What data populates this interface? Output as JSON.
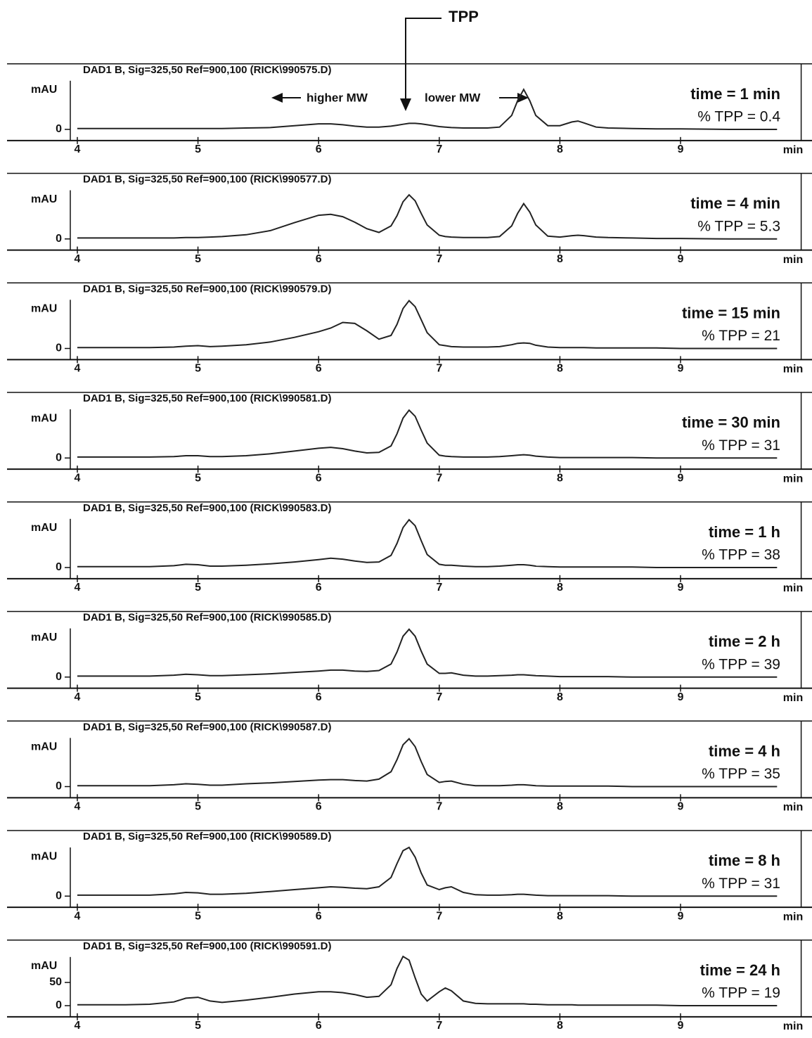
{
  "figure_label": "TPP",
  "chart_data": [
    {
      "type": "line",
      "title": "DAD1 B, Sig=325,50 Ref=900,100 (RICK\\990575.D)",
      "time_label": "time = 1 min",
      "tpp_label": "% TPP = 0.4",
      "annotations": [
        "higher MW",
        "lower MW"
      ],
      "ylabel": "mAU",
      "xlabel": "min",
      "xlim": [
        4,
        10
      ],
      "xticks": [
        4,
        5,
        6,
        7,
        8,
        9
      ],
      "ylim": [
        -24,
        120
      ],
      "yticks": [
        0
      ],
      "color": "#222222",
      "x": [
        4.0,
        4.2,
        4.4,
        4.6,
        4.8,
        4.9,
        5.0,
        5.1,
        5.2,
        5.4,
        5.6,
        5.8,
        6.0,
        6.1,
        6.2,
        6.3,
        6.4,
        6.5,
        6.6,
        6.65,
        6.7,
        6.75,
        6.8,
        6.85,
        6.9,
        7.0,
        7.05,
        7.1,
        7.2,
        7.3,
        7.4,
        7.5,
        7.6,
        7.65,
        7.7,
        7.75,
        7.8,
        7.9,
        8.0,
        8.1,
        8.15,
        8.2,
        8.3,
        8.4,
        8.6,
        8.8,
        9.0,
        9.4,
        9.8
      ],
      "values": [
        2,
        2,
        2,
        2,
        2,
        2,
        2,
        2,
        2,
        3,
        4,
        8,
        12,
        12,
        10,
        7,
        5,
        5,
        7,
        9,
        11,
        13,
        13,
        12,
        10,
        6,
        5,
        4,
        3,
        3,
        3,
        5,
        30,
        62,
        86,
        62,
        30,
        8,
        8,
        16,
        18,
        14,
        5,
        3,
        2,
        1,
        1,
        0,
        0
      ]
    },
    {
      "type": "line",
      "title": "DAD1 B, Sig=325,50 Ref=900,100 (RICK\\990577.D)",
      "time_label": "time = 4 min",
      "tpp_label": "% TPP = 5.3",
      "ylabel": "mAU",
      "xlabel": "min",
      "xlim": [
        4,
        10
      ],
      "xticks": [
        4,
        5,
        6,
        7,
        8,
        9
      ],
      "ylim": [
        -24,
        120
      ],
      "yticks": [
        0
      ],
      "color": "#222222",
      "x": [
        4.0,
        4.2,
        4.4,
        4.6,
        4.8,
        4.9,
        5.0,
        5.1,
        5.2,
        5.4,
        5.6,
        5.8,
        6.0,
        6.1,
        6.2,
        6.3,
        6.4,
        6.5,
        6.6,
        6.65,
        6.7,
        6.75,
        6.8,
        6.85,
        6.9,
        7.0,
        7.05,
        7.1,
        7.2,
        7.3,
        7.4,
        7.5,
        7.6,
        7.65,
        7.7,
        7.75,
        7.8,
        7.9,
        8.0,
        8.1,
        8.15,
        8.2,
        8.3,
        8.4,
        8.6,
        8.8,
        9.0,
        9.4,
        9.8
      ],
      "values": [
        2,
        2,
        2,
        2,
        2,
        3,
        3,
        4,
        5,
        9,
        18,
        35,
        51,
        53,
        48,
        36,
        22,
        14,
        28,
        50,
        80,
        95,
        82,
        55,
        30,
        8,
        5,
        4,
        3,
        3,
        3,
        5,
        28,
        55,
        76,
        58,
        30,
        6,
        4,
        7,
        8,
        7,
        4,
        3,
        2,
        1,
        1,
        0,
        0
      ]
    },
    {
      "type": "line",
      "title": "DAD1 B, Sig=325,50 Ref=900,100 (RICK\\990579.D)",
      "time_label": "time = 15 min",
      "tpp_label": "% TPP = 21",
      "ylabel": "mAU",
      "xlabel": "min",
      "xlim": [
        4,
        10
      ],
      "xticks": [
        4,
        5,
        6,
        7,
        8,
        9
      ],
      "ylim": [
        -24,
        120
      ],
      "yticks": [
        0
      ],
      "color": "#222222",
      "x": [
        4.0,
        4.2,
        4.4,
        4.6,
        4.8,
        4.9,
        5.0,
        5.1,
        5.2,
        5.4,
        5.6,
        5.8,
        6.0,
        6.1,
        6.2,
        6.3,
        6.4,
        6.5,
        6.6,
        6.65,
        6.7,
        6.75,
        6.8,
        6.85,
        6.9,
        7.0,
        7.05,
        7.1,
        7.2,
        7.3,
        7.4,
        7.5,
        7.6,
        7.65,
        7.7,
        7.75,
        7.8,
        7.9,
        8.0,
        8.1,
        8.15,
        8.2,
        8.3,
        8.4,
        8.6,
        8.8,
        9.0,
        9.4,
        9.8
      ],
      "values": [
        2,
        2,
        2,
        2,
        3,
        5,
        6,
        4,
        5,
        8,
        14,
        24,
        36,
        44,
        56,
        54,
        38,
        20,
        28,
        52,
        86,
        103,
        90,
        62,
        34,
        8,
        6,
        4,
        3,
        3,
        3,
        4,
        8,
        11,
        12,
        11,
        7,
        3,
        2,
        2,
        2,
        2,
        1,
        1,
        1,
        1,
        0,
        0,
        0
      ]
    },
    {
      "type": "line",
      "title": "DAD1 B, Sig=325,50 Ref=900,100 (RICK\\990581.D)",
      "time_label": "time = 30 min",
      "tpp_label": "% TPP = 31",
      "ylabel": "mAU",
      "xlabel": "min",
      "xlim": [
        4,
        10
      ],
      "xticks": [
        4,
        5,
        6,
        7,
        8,
        9
      ],
      "ylim": [
        -24,
        120
      ],
      "yticks": [
        0
      ],
      "color": "#222222",
      "x": [
        4.0,
        4.2,
        4.4,
        4.6,
        4.8,
        4.9,
        5.0,
        5.1,
        5.2,
        5.4,
        5.6,
        5.8,
        6.0,
        6.1,
        6.2,
        6.3,
        6.4,
        6.5,
        6.6,
        6.65,
        6.7,
        6.75,
        6.8,
        6.85,
        6.9,
        7.0,
        7.05,
        7.1,
        7.2,
        7.3,
        7.4,
        7.5,
        7.6,
        7.65,
        7.7,
        7.75,
        7.8,
        7.9,
        8.0,
        8.1,
        8.15,
        8.2,
        8.3,
        8.4,
        8.6,
        8.8,
        9.0,
        9.4,
        9.8
      ],
      "values": [
        2,
        2,
        2,
        2,
        3,
        5,
        5,
        3,
        3,
        5,
        9,
        15,
        21,
        23,
        20,
        15,
        11,
        12,
        26,
        52,
        86,
        103,
        90,
        60,
        32,
        6,
        4,
        3,
        2,
        2,
        2,
        3,
        5,
        6,
        7,
        6,
        4,
        2,
        1,
        1,
        1,
        1,
        1,
        1,
        1,
        0,
        0,
        0,
        0
      ]
    },
    {
      "type": "line",
      "title": "DAD1 B, Sig=325,50 Ref=900,100 (RICK\\990583.D)",
      "time_label": "time = 1 h",
      "tpp_label": "% TPP = 38",
      "ylabel": "mAU",
      "xlabel": "min",
      "xlim": [
        4,
        10
      ],
      "xticks": [
        4,
        5,
        6,
        7,
        8,
        9
      ],
      "ylim": [
        -24,
        120
      ],
      "yticks": [
        0
      ],
      "color": "#222222",
      "x": [
        4.0,
        4.2,
        4.4,
        4.6,
        4.8,
        4.9,
        5.0,
        5.1,
        5.2,
        5.4,
        5.6,
        5.8,
        6.0,
        6.1,
        6.2,
        6.3,
        6.4,
        6.5,
        6.6,
        6.65,
        6.7,
        6.75,
        6.8,
        6.85,
        6.9,
        7.0,
        7.05,
        7.1,
        7.2,
        7.3,
        7.4,
        7.5,
        7.6,
        7.65,
        7.7,
        7.75,
        7.8,
        7.9,
        8.0,
        8.1,
        8.15,
        8.2,
        8.3,
        8.4,
        8.6,
        8.8,
        9.0,
        9.4,
        9.8
      ],
      "values": [
        2,
        2,
        2,
        2,
        4,
        7,
        6,
        3,
        3,
        5,
        8,
        12,
        17,
        20,
        18,
        14,
        11,
        12,
        26,
        52,
        86,
        103,
        90,
        58,
        28,
        7,
        5,
        5,
        3,
        2,
        2,
        3,
        5,
        6,
        6,
        5,
        3,
        2,
        1,
        1,
        1,
        1,
        1,
        1,
        1,
        0,
        0,
        0,
        0
      ]
    },
    {
      "type": "line",
      "title": "DAD1 B, Sig=325,50 Ref=900,100 (RICK\\990585.D)",
      "time_label": "time = 2 h",
      "tpp_label": "% TPP = 39",
      "ylabel": "mAU",
      "xlabel": "min",
      "xlim": [
        4,
        10
      ],
      "xticks": [
        4,
        5,
        6,
        7,
        8,
        9
      ],
      "ylim": [
        -24,
        120
      ],
      "yticks": [
        0
      ],
      "color": "#222222",
      "x": [
        4.0,
        4.2,
        4.4,
        4.6,
        4.8,
        4.9,
        5.0,
        5.1,
        5.2,
        5.4,
        5.6,
        5.8,
        6.0,
        6.1,
        6.2,
        6.3,
        6.4,
        6.5,
        6.6,
        6.65,
        6.7,
        6.75,
        6.8,
        6.85,
        6.9,
        7.0,
        7.05,
        7.1,
        7.2,
        7.3,
        7.4,
        7.5,
        7.6,
        7.65,
        7.7,
        7.75,
        7.8,
        7.9,
        8.0,
        8.1,
        8.15,
        8.2,
        8.3,
        8.4,
        8.6,
        8.8,
        9.0,
        9.4,
        9.8
      ],
      "values": [
        2,
        2,
        2,
        2,
        4,
        6,
        5,
        3,
        3,
        5,
        7,
        10,
        13,
        15,
        15,
        13,
        12,
        14,
        28,
        54,
        88,
        103,
        88,
        56,
        28,
        8,
        8,
        9,
        4,
        2,
        2,
        3,
        4,
        5,
        5,
        4,
        3,
        2,
        1,
        1,
        1,
        1,
        1,
        1,
        0,
        0,
        0,
        0,
        0
      ]
    },
    {
      "type": "line",
      "title": "DAD1 B, Sig=325,50 Ref=900,100 (RICK\\990587.D)",
      "time_label": "time = 4 h",
      "tpp_label": "% TPP = 35",
      "ylabel": "mAU",
      "xlabel": "min",
      "xlim": [
        4,
        10
      ],
      "xticks": [
        4,
        5,
        6,
        7,
        8,
        9
      ],
      "ylim": [
        -24,
        120
      ],
      "yticks": [
        0
      ],
      "color": "#222222",
      "x": [
        4.0,
        4.2,
        4.4,
        4.6,
        4.8,
        4.9,
        5.0,
        5.1,
        5.2,
        5.4,
        5.6,
        5.8,
        6.0,
        6.1,
        6.2,
        6.3,
        6.4,
        6.5,
        6.6,
        6.65,
        6.7,
        6.75,
        6.8,
        6.85,
        6.9,
        7.0,
        7.05,
        7.1,
        7.2,
        7.3,
        7.4,
        7.5,
        7.6,
        7.65,
        7.7,
        7.75,
        7.8,
        7.9,
        8.0,
        8.1,
        8.15,
        8.2,
        8.3,
        8.4,
        8.6,
        8.8,
        9.0,
        9.4,
        9.8
      ],
      "values": [
        2,
        2,
        2,
        2,
        4,
        6,
        5,
        3,
        3,
        6,
        8,
        11,
        14,
        15,
        15,
        13,
        12,
        16,
        32,
        58,
        90,
        103,
        86,
        54,
        26,
        9,
        11,
        12,
        5,
        2,
        2,
        2,
        3,
        4,
        4,
        3,
        2,
        1,
        1,
        1,
        1,
        1,
        1,
        1,
        0,
        0,
        0,
        0,
        0
      ]
    },
    {
      "type": "line",
      "title": "DAD1 B, Sig=325,50 Ref=900,100 (RICK\\990589.D)",
      "time_label": "time = 8 h",
      "tpp_label": "% TPP = 31",
      "ylabel": "mAU",
      "xlabel": "min",
      "xlim": [
        4,
        10
      ],
      "xticks": [
        4,
        5,
        6,
        7,
        8,
        9
      ],
      "ylim": [
        -24,
        120
      ],
      "yticks": [
        0
      ],
      "color": "#222222",
      "x": [
        4.0,
        4.2,
        4.4,
        4.6,
        4.8,
        4.9,
        5.0,
        5.1,
        5.2,
        5.4,
        5.6,
        5.8,
        6.0,
        6.1,
        6.2,
        6.3,
        6.4,
        6.5,
        6.6,
        6.65,
        6.7,
        6.75,
        6.8,
        6.85,
        6.9,
        7.0,
        7.05,
        7.1,
        7.2,
        7.3,
        7.4,
        7.5,
        7.6,
        7.65,
        7.7,
        7.75,
        7.8,
        7.9,
        8.0,
        8.1,
        8.15,
        8.2,
        8.3,
        8.4,
        8.6,
        8.8,
        9.0,
        9.4,
        9.8
      ],
      "values": [
        2,
        2,
        2,
        2,
        5,
        8,
        7,
        4,
        4,
        6,
        10,
        14,
        18,
        20,
        19,
        17,
        16,
        20,
        40,
        70,
        98,
        105,
        84,
        50,
        24,
        14,
        18,
        20,
        8,
        3,
        2,
        2,
        3,
        4,
        4,
        3,
        2,
        1,
        1,
        1,
        1,
        1,
        1,
        1,
        0,
        0,
        0,
        0,
        0
      ]
    },
    {
      "type": "line",
      "title": "DAD1 B, Sig=325,50 Ref=900,100 (RICK\\990591.D)",
      "time_label": "time = 24 h",
      "tpp_label": "% TPP = 19",
      "ylabel": "mAU",
      "xlabel": "min",
      "xlim": [
        4,
        10
      ],
      "xticks": [
        4,
        5,
        6,
        7,
        8,
        9
      ],
      "ylim": [
        -24,
        120
      ],
      "yticks": [
        0,
        50
      ],
      "color": "#222222",
      "x": [
        4.0,
        4.2,
        4.4,
        4.6,
        4.8,
        4.9,
        5.0,
        5.1,
        5.2,
        5.4,
        5.6,
        5.8,
        6.0,
        6.1,
        6.2,
        6.3,
        6.4,
        6.5,
        6.6,
        6.65,
        6.7,
        6.75,
        6.8,
        6.85,
        6.9,
        7.0,
        7.05,
        7.1,
        7.2,
        7.3,
        7.4,
        7.5,
        7.6,
        7.65,
        7.7,
        7.75,
        7.8,
        7.9,
        8.0,
        8.1,
        8.15,
        8.2,
        8.3,
        8.4,
        8.6,
        8.8,
        9.0,
        9.4,
        9.8
      ],
      "values": [
        2,
        2,
        2,
        3,
        8,
        16,
        18,
        10,
        7,
        12,
        18,
        25,
        30,
        30,
        28,
        24,
        18,
        20,
        45,
        80,
        106,
        98,
        60,
        25,
        10,
        30,
        38,
        32,
        10,
        5,
        4,
        4,
        4,
        4,
        4,
        3,
        3,
        2,
        2,
        2,
        1,
        1,
        1,
        1,
        1,
        1,
        0,
        0,
        0
      ]
    }
  ]
}
